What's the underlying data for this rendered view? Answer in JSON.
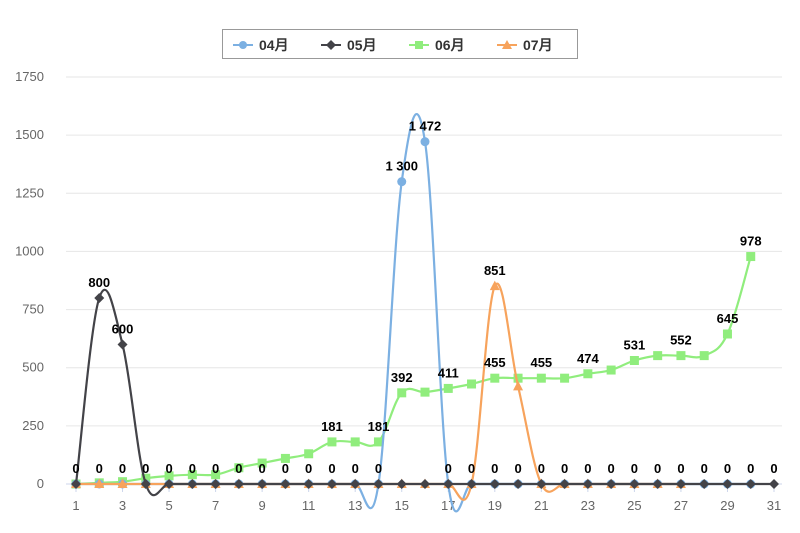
{
  "chart_data": {
    "type": "line",
    "title": "",
    "xlabel": "",
    "ylabel": "",
    "legend_position": "top-center",
    "grid": true,
    "x": [
      1,
      2,
      3,
      4,
      5,
      6,
      7,
      8,
      9,
      10,
      11,
      12,
      13,
      14,
      15,
      16,
      17,
      18,
      19,
      20,
      21,
      22,
      23,
      24,
      25,
      26,
      27,
      28,
      29,
      30,
      31
    ],
    "x_tick_labels": [
      "1",
      "3",
      "5",
      "7",
      "9",
      "11",
      "13",
      "15",
      "17",
      "19",
      "21",
      "23",
      "25",
      "27",
      "29",
      "31"
    ],
    "ylim": [
      0,
      1750
    ],
    "y_tick_labels": [
      "0",
      "250",
      "500",
      "750",
      "1000",
      "1250",
      "1500",
      "1750"
    ],
    "series": [
      {
        "name": "04月",
        "color": "#7cb0e2",
        "marker": "circle",
        "values": [
          0,
          0,
          0,
          0,
          0,
          0,
          0,
          0,
          0,
          0,
          0,
          0,
          0,
          0,
          1300,
          1472,
          0,
          0,
          0,
          0,
          0,
          0,
          0,
          0,
          0,
          0,
          0,
          0,
          0,
          0,
          null
        ],
        "labels": [
          0,
          0,
          0,
          0,
          0,
          0,
          0,
          0,
          0,
          0,
          0,
          0,
          0,
          0,
          "1 300",
          "1 472",
          0,
          0,
          0,
          0,
          0,
          0,
          0,
          0,
          0,
          0,
          0,
          0,
          0,
          0,
          null
        ]
      },
      {
        "name": "05月",
        "color": "#434348",
        "marker": "diamond",
        "values": [
          0,
          800,
          600,
          0,
          0,
          0,
          0,
          0,
          0,
          0,
          0,
          0,
          0,
          0,
          0,
          0,
          0,
          0,
          0,
          0,
          0,
          0,
          0,
          0,
          0,
          0,
          0,
          0,
          0,
          0,
          0
        ],
        "labels": [
          null,
          800,
          600,
          null,
          null,
          null,
          null,
          null,
          null,
          null,
          null,
          null,
          null,
          null,
          null,
          null,
          null,
          null,
          null,
          null,
          null,
          null,
          null,
          null,
          null,
          null,
          null,
          null,
          null,
          null,
          0
        ]
      },
      {
        "name": "06月",
        "color": "#90ed7d",
        "marker": "square",
        "values": [
          0,
          5,
          10,
          25,
          35,
          40,
          40,
          70,
          90,
          110,
          130,
          181,
          181,
          181,
          392,
          395,
          411,
          430,
          455,
          455,
          455,
          455,
          474,
          490,
          531,
          552,
          552,
          552,
          645,
          978,
          null
        ],
        "labels": [
          null,
          null,
          null,
          null,
          null,
          null,
          null,
          null,
          null,
          null,
          null,
          181,
          null,
          181,
          392,
          null,
          411,
          null,
          455,
          null,
          455,
          null,
          474,
          null,
          531,
          null,
          552,
          null,
          645,
          978,
          null
        ]
      },
      {
        "name": "07月",
        "color": "#f7a35c",
        "marker": "triangle",
        "values": [
          0,
          0,
          0,
          0,
          0,
          0,
          0,
          0,
          0,
          0,
          0,
          0,
          0,
          0,
          0,
          0,
          0,
          0,
          851,
          420,
          0,
          0,
          0,
          0,
          0,
          0,
          0,
          null,
          null,
          null,
          null
        ],
        "labels": [
          null,
          null,
          null,
          null,
          null,
          null,
          null,
          null,
          null,
          null,
          null,
          null,
          null,
          null,
          null,
          null,
          null,
          null,
          851,
          null,
          null,
          null,
          null,
          null,
          null,
          null,
          null,
          null,
          null,
          null,
          null
        ]
      }
    ]
  }
}
